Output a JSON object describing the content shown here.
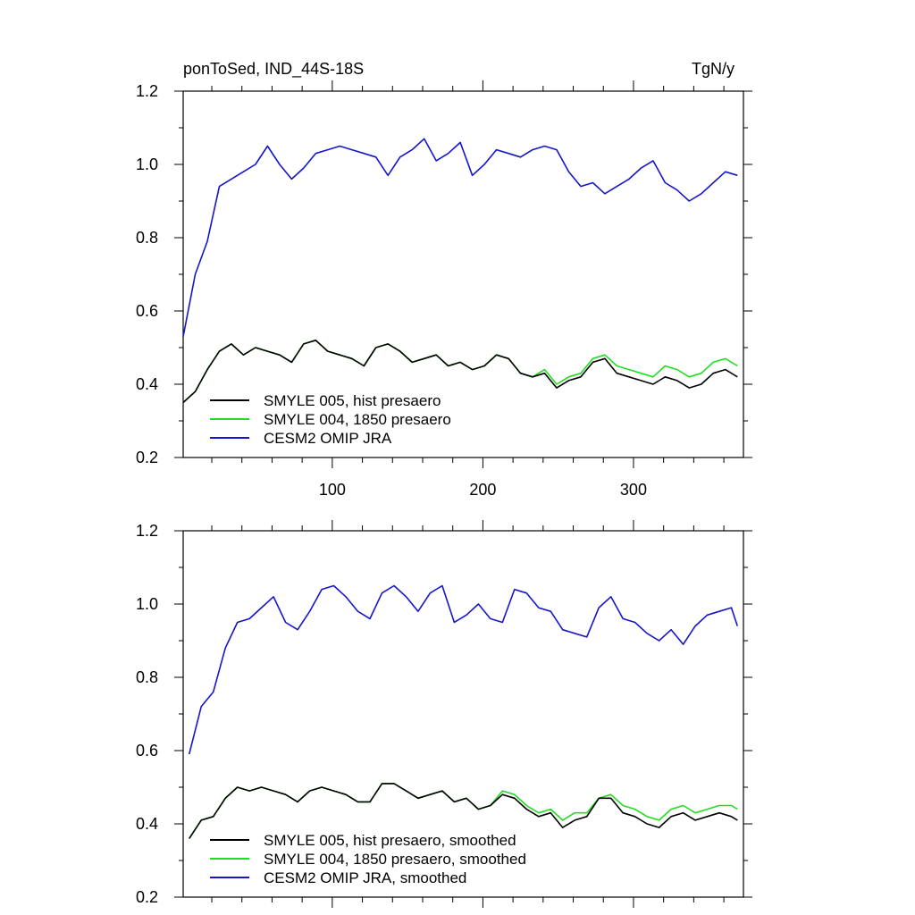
{
  "header": {
    "title": "ponToSed, IND_44S-18S",
    "units": "TgN/y"
  },
  "colors": {
    "smyle005": "#000000",
    "smyle004": "#22dd22",
    "cesm2": "#1515cc"
  },
  "chart_data": [
    {
      "type": "line",
      "panel": "top",
      "x_range": [
        1,
        373
      ],
      "ylim": [
        0.2,
        1.2
      ],
      "x_ticks": [
        100,
        200,
        300
      ],
      "x_tick_labels": [
        "100",
        "200",
        "300"
      ],
      "y_ticks": [
        0.2,
        0.4,
        0.6,
        0.8,
        1.0,
        1.2
      ],
      "y_tick_labels": [
        "0.2",
        "0.4",
        "0.6",
        "0.8",
        "1.0",
        "1.2"
      ],
      "legend_position": "bottom-left",
      "legend": [
        {
          "key": "smyle005",
          "label": "SMYLE 005, hist presaero"
        },
        {
          "key": "smyle004",
          "label": "SMYLE 004, 1850 presaero"
        },
        {
          "key": "cesm2",
          "label": "CESM2 OMIP JRA"
        }
      ],
      "series": [
        {
          "key": "cesm2",
          "x_start": 1,
          "x_step": 8,
          "values": [
            0.53,
            0.7,
            0.79,
            0.94,
            0.96,
            0.98,
            1.0,
            1.05,
            1.0,
            0.96,
            0.99,
            1.03,
            1.04,
            1.05,
            1.04,
            1.03,
            1.02,
            0.97,
            1.02,
            1.04,
            1.07,
            1.01,
            1.03,
            1.06,
            0.97,
            1.0,
            1.04,
            1.03,
            1.02,
            1.04,
            1.05,
            1.04,
            0.98,
            0.94,
            0.95,
            0.92,
            0.94,
            0.96,
            0.99,
            1.01,
            0.95,
            0.93,
            0.9,
            0.92,
            0.95,
            0.98,
            0.97
          ]
        },
        {
          "key": "smyle004",
          "x_start": 1,
          "x_step": 8,
          "values": [
            0.35,
            0.38,
            0.44,
            0.49,
            0.51,
            0.48,
            0.5,
            0.49,
            0.48,
            0.46,
            0.51,
            0.52,
            0.49,
            0.48,
            0.47,
            0.45,
            0.5,
            0.51,
            0.49,
            0.46,
            0.47,
            0.48,
            0.45,
            0.46,
            0.44,
            0.45,
            0.48,
            0.47,
            0.43,
            0.42,
            0.44,
            0.4,
            0.42,
            0.43,
            0.47,
            0.48,
            0.45,
            0.44,
            0.43,
            0.42,
            0.45,
            0.44,
            0.42,
            0.43,
            0.46,
            0.47,
            0.45
          ]
        },
        {
          "key": "smyle005",
          "x_start": 1,
          "x_step": 8,
          "values": [
            0.35,
            0.38,
            0.44,
            0.49,
            0.51,
            0.48,
            0.5,
            0.49,
            0.48,
            0.46,
            0.51,
            0.52,
            0.49,
            0.48,
            0.47,
            0.45,
            0.5,
            0.51,
            0.49,
            0.46,
            0.47,
            0.48,
            0.45,
            0.46,
            0.44,
            0.45,
            0.48,
            0.47,
            0.43,
            0.42,
            0.43,
            0.39,
            0.41,
            0.42,
            0.46,
            0.47,
            0.43,
            0.42,
            0.41,
            0.4,
            0.42,
            0.41,
            0.39,
            0.4,
            0.43,
            0.44,
            0.42
          ]
        }
      ]
    },
    {
      "type": "line",
      "panel": "bottom",
      "x_range": [
        1,
        373
      ],
      "ylim": [
        0.2,
        1.2
      ],
      "x_ticks": [
        100,
        200,
        300
      ],
      "x_tick_labels": [],
      "y_ticks": [
        0.2,
        0.4,
        0.6,
        0.8,
        1.0,
        1.2
      ],
      "y_tick_labels": [
        "0.2",
        "0.4",
        "0.6",
        "0.8",
        "1.0",
        "1.2"
      ],
      "legend_position": "bottom-left",
      "legend": [
        {
          "key": "smyle005",
          "label": "SMYLE 005, hist presaero, smoothed"
        },
        {
          "key": "smyle004",
          "label": "SMYLE 004, 1850 presaero, smoothed"
        },
        {
          "key": "cesm2",
          "label": "CESM2 OMIP JRA, smoothed"
        }
      ],
      "series": [
        {
          "key": "cesm2",
          "x_start": 5,
          "x_step": 8,
          "values": [
            0.59,
            0.72,
            0.76,
            0.88,
            0.95,
            0.96,
            0.99,
            1.02,
            0.95,
            0.93,
            0.98,
            1.04,
            1.05,
            1.02,
            0.98,
            0.96,
            1.03,
            1.05,
            1.02,
            0.98,
            1.03,
            1.05,
            0.95,
            0.97,
            1.0,
            0.96,
            0.95,
            1.04,
            1.03,
            0.99,
            0.98,
            0.93,
            0.92,
            0.91,
            0.99,
            1.02,
            0.96,
            0.95,
            0.92,
            0.9,
            0.93,
            0.89,
            0.94,
            0.97,
            0.98,
            0.99,
            0.94
          ]
        },
        {
          "key": "smyle004",
          "x_start": 5,
          "x_step": 8,
          "values": [
            0.36,
            0.41,
            0.42,
            0.47,
            0.5,
            0.49,
            0.5,
            0.49,
            0.48,
            0.46,
            0.49,
            0.5,
            0.49,
            0.48,
            0.46,
            0.46,
            0.51,
            0.51,
            0.49,
            0.47,
            0.48,
            0.49,
            0.46,
            0.47,
            0.44,
            0.45,
            0.49,
            0.48,
            0.45,
            0.43,
            0.44,
            0.41,
            0.43,
            0.43,
            0.47,
            0.48,
            0.45,
            0.44,
            0.42,
            0.41,
            0.44,
            0.45,
            0.43,
            0.44,
            0.45,
            0.45,
            0.44
          ]
        },
        {
          "key": "smyle005",
          "x_start": 5,
          "x_step": 8,
          "values": [
            0.36,
            0.41,
            0.42,
            0.47,
            0.5,
            0.49,
            0.5,
            0.49,
            0.48,
            0.46,
            0.49,
            0.5,
            0.49,
            0.48,
            0.46,
            0.46,
            0.51,
            0.51,
            0.49,
            0.47,
            0.48,
            0.49,
            0.46,
            0.47,
            0.44,
            0.45,
            0.48,
            0.47,
            0.44,
            0.42,
            0.43,
            0.39,
            0.41,
            0.42,
            0.47,
            0.47,
            0.43,
            0.42,
            0.4,
            0.39,
            0.42,
            0.43,
            0.41,
            0.42,
            0.43,
            0.42,
            0.41
          ]
        }
      ]
    }
  ]
}
